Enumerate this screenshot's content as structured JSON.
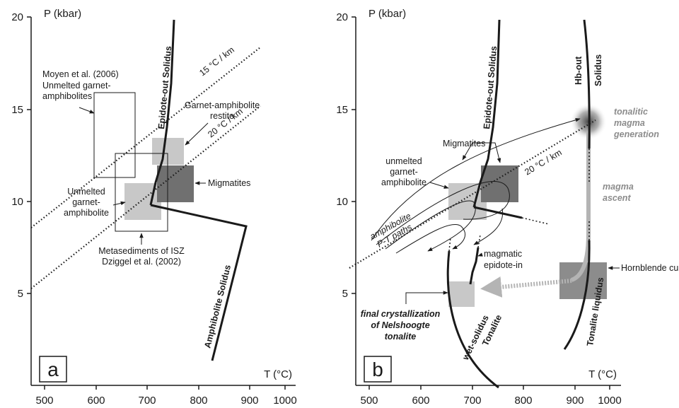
{
  "colors": {
    "light_box": "#c8c8c8",
    "mid_box": "#8c8c8c",
    "dark_box": "#707070",
    "ascent_arrow": "#b4b4b4",
    "grey_label": "#8c8c8c"
  },
  "axes": {
    "x_title": "T (°C)",
    "y_title": "P (kbar)",
    "x_ticks": [
      "500",
      "600",
      "700",
      "800",
      "900",
      "1000"
    ],
    "y_ticks": [
      "5",
      "10",
      "15",
      "20"
    ]
  },
  "panel_a": {
    "letter": "a",
    "labels": {
      "epidote_out": "Epidote-out Solidus",
      "amphibolite_solidus": "Amphibolite Solidus",
      "geotherm_15": "15 °C / km",
      "geotherm_20": "20 °C / km",
      "moyen_line1": "Moyen et al. (2006)",
      "moyen_line2": "Unmelted garnet-",
      "moyen_line3": "amphibolites",
      "restite_line1": "Garnet-amphibolite",
      "restite_line2": "restite",
      "migmatites": "Migmatites",
      "unmelted_line1": "Unmelted",
      "unmelted_line2": "garnet-",
      "unmelted_line3": "amphibolite",
      "meta_line1": "Metasediments of ISZ",
      "meta_line2": "Dziggel et al. (2002)"
    }
  },
  "panel_b": {
    "letter": "b",
    "labels": {
      "epidote_out": "Epidote-out Solidus",
      "hb_out_1": "Hb-out",
      "hb_out_2": "Solidus",
      "geotherm_20": "20 °C / km",
      "generation_1": "tonalitic",
      "generation_2": "magma",
      "generation_3": "generation",
      "ascent_1": "magma",
      "ascent_2": "ascent",
      "migmatites": "Migmatites",
      "unmelted_1": "unmelted",
      "unmelted_2": "garnet-",
      "unmelted_3": "amphibolite",
      "pt_1": "amphibolite",
      "pt_2": "P-T paths",
      "epidote_in_1": "magmatic",
      "epidote_in_2": "epidote-in",
      "hornblende": "Hornblende cumulates",
      "liquidus": "Tonalite liquidus",
      "wet_1": "Tonalite",
      "wet_2": "wet-solidus",
      "final_1": "final crystallization",
      "final_2": "of Nelshoogte",
      "final_3": "tonalite"
    }
  }
}
